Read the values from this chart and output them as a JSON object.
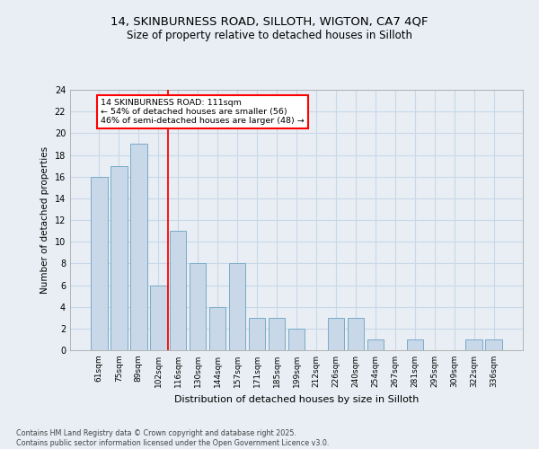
{
  "title_line1": "14, SKINBURNESS ROAD, SILLOTH, WIGTON, CA7 4QF",
  "title_line2": "Size of property relative to detached houses in Silloth",
  "xlabel": "Distribution of detached houses by size in Silloth",
  "ylabel": "Number of detached properties",
  "categories": [
    "61sqm",
    "75sqm",
    "89sqm",
    "102sqm",
    "116sqm",
    "130sqm",
    "144sqm",
    "157sqm",
    "171sqm",
    "185sqm",
    "199sqm",
    "212sqm",
    "226sqm",
    "240sqm",
    "254sqm",
    "267sqm",
    "281sqm",
    "295sqm",
    "309sqm",
    "322sqm",
    "336sqm"
  ],
  "values": [
    16,
    17,
    19,
    6,
    11,
    8,
    4,
    8,
    3,
    3,
    2,
    0,
    3,
    3,
    1,
    0,
    1,
    0,
    0,
    1,
    1
  ],
  "bar_color": "#c8d8e8",
  "bar_edge_color": "#7aaac8",
  "grid_color": "#c8d8e8",
  "vline_x": 3.5,
  "vline_color": "red",
  "annotation_text": "14 SKINBURNESS ROAD: 111sqm\n← 54% of detached houses are smaller (56)\n46% of semi-detached houses are larger (48) →",
  "annotation_box_color": "white",
  "annotation_box_edge": "red",
  "ylim": [
    0,
    24
  ],
  "yticks": [
    0,
    2,
    4,
    6,
    8,
    10,
    12,
    14,
    16,
    18,
    20,
    22,
    24
  ],
  "footer_text": "Contains HM Land Registry data © Crown copyright and database right 2025.\nContains public sector information licensed under the Open Government Licence v3.0.",
  "bg_color": "#e8eef4",
  "title_fontsize": 9.5,
  "subtitle_fontsize": 8.5
}
